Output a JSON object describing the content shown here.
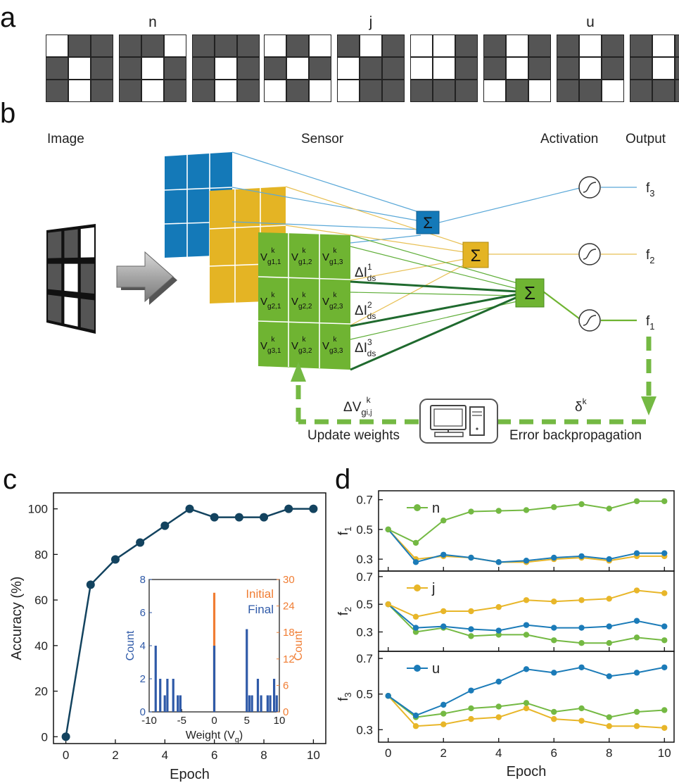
{
  "panel_labels": {
    "a": "a",
    "b": "b",
    "c": "c",
    "d": "d"
  },
  "panel_a": {
    "groups": [
      {
        "letter": "n",
        "patterns": [
          [
            1,
            0,
            0,
            0,
            1,
            0,
            0,
            1,
            0
          ],
          [
            0,
            0,
            1,
            0,
            1,
            0,
            0,
            1,
            0
          ],
          [
            0,
            0,
            0,
            0,
            1,
            0,
            0,
            1,
            0
          ]
        ]
      },
      {
        "letter": "j",
        "patterns": [
          [
            1,
            0,
            1,
            0,
            1,
            0,
            1,
            0,
            1
          ],
          [
            0,
            1,
            0,
            1,
            0,
            0,
            1,
            0,
            0
          ],
          [
            1,
            1,
            0,
            1,
            1,
            0,
            0,
            0,
            0
          ]
        ]
      },
      {
        "letter": "u",
        "patterns": [
          [
            0,
            1,
            0,
            0,
            1,
            0,
            1,
            0,
            1
          ],
          [
            0,
            1,
            0,
            0,
            1,
            0,
            0,
            0,
            1
          ],
          [
            0,
            1,
            0,
            0,
            1,
            0,
            0,
            0,
            0
          ]
        ]
      }
    ]
  },
  "panel_b": {
    "labels": {
      "image": "Image",
      "sensor": "Sensor",
      "activation": "Activation",
      "output": "Output"
    },
    "input_image": [
      1,
      1,
      0,
      1,
      0,
      1,
      1,
      0,
      1
    ],
    "cell_main": "V",
    "cell_sub": "g",
    "cell_sup": "k",
    "cells": [
      "1,1",
      "1,2",
      "1,3",
      "2,1",
      "2,2",
      "2,3",
      "3,1",
      "3,2",
      "3,3"
    ],
    "sum_symbol": "Σ",
    "outputs": [
      {
        "main": "f",
        "sub": "3"
      },
      {
        "main": "f",
        "sub": "2"
      },
      {
        "main": "f",
        "sub": "1"
      }
    ],
    "currents": [
      {
        "main": "ΔI",
        "sub": "ds",
        "sup": "1"
      },
      {
        "main": "ΔI",
        "sub": "ds",
        "sup": "2"
      },
      {
        "main": "ΔI",
        "sub": "ds",
        "sup": "3"
      }
    ],
    "dv": {
      "main": "ΔV",
      "sub": "g",
      "subsub": "i,j",
      "sup": "k"
    },
    "delta": {
      "main": "δ",
      "sup": "k"
    },
    "update_label": "Update weights",
    "backprop_label": "Error backpropagation"
  },
  "panel_c": {
    "chart_data": {
      "type": "line",
      "x": [
        0,
        1,
        2,
        3,
        4,
        5,
        6,
        7,
        8,
        9,
        10
      ],
      "y": [
        0,
        66.7,
        77.8,
        85.2,
        92.6,
        100,
        96.3,
        96.3,
        96.3,
        100,
        100
      ],
      "xlabel": "Epoch",
      "ylabel": "Accuracy (%)",
      "xlim": [
        -0.5,
        10.5
      ],
      "ylim": [
        -3,
        107
      ],
      "xticks": [
        0,
        2,
        4,
        6,
        8,
        10
      ],
      "yticks": [
        0,
        20,
        40,
        60,
        80,
        100
      ],
      "color": "#13435f"
    },
    "inset": {
      "type": "bar",
      "xlabel": "Weight (V",
      "xlabel_sub": "g",
      "xlabel_end": ")",
      "ylabel_left": "Count",
      "ylabel_right": "Count",
      "legend": [
        "Initial",
        "Final"
      ],
      "xticks": [
        -10,
        -5,
        0,
        5,
        10
      ],
      "yticks_left": [
        0,
        2,
        4,
        6,
        8
      ],
      "yticks_right": [
        0,
        6,
        12,
        18,
        24,
        30
      ],
      "xlim": [
        -10,
        10
      ],
      "ylim_left": [
        0,
        8
      ],
      "ylim_right": [
        0,
        30
      ],
      "initial_color": "#f07d33",
      "final_color": "#2f5aa8",
      "initial": [
        {
          "x": 0,
          "count": 27
        }
      ],
      "final": [
        {
          "x": -9,
          "count": 4
        },
        {
          "x": -8.3,
          "count": 2
        },
        {
          "x": -7.6,
          "count": 1
        },
        {
          "x": -7.2,
          "count": 2
        },
        {
          "x": -6.3,
          "count": 2
        },
        {
          "x": -5.6,
          "count": 1
        },
        {
          "x": -5.2,
          "count": 1
        },
        {
          "x": 0,
          "count": 4
        },
        {
          "x": 5,
          "count": 5
        },
        {
          "x": 5.4,
          "count": 1
        },
        {
          "x": 5.8,
          "count": 1
        },
        {
          "x": 6.7,
          "count": 2
        },
        {
          "x": 7.2,
          "count": 1
        },
        {
          "x": 8.2,
          "count": 1
        },
        {
          "x": 8.6,
          "count": 1
        },
        {
          "x": 9.2,
          "count": 2
        },
        {
          "x": 9.6,
          "count": 1
        }
      ]
    }
  },
  "panel_d": {
    "chart_data": [
      {
        "type": "line",
        "ylabel_main": "f",
        "ylabel_sub": "1",
        "legend": "n",
        "legend_color": "#74b943",
        "x": [
          0,
          1,
          2,
          3,
          4,
          5,
          6,
          7,
          8,
          9,
          10
        ],
        "ylim": [
          0.22,
          0.76
        ],
        "yticks": [
          0.3,
          0.5,
          0.7
        ],
        "series": [
          {
            "color": "#74b943",
            "values": [
              0.5,
              0.41,
              0.56,
              0.62,
              0.625,
              0.63,
              0.65,
              0.67,
              0.64,
              0.69,
              0.69
            ]
          },
          {
            "color": "#1b7bb8",
            "values": [
              0.5,
              0.28,
              0.33,
              0.31,
              0.28,
              0.29,
              0.31,
              0.32,
              0.3,
              0.34,
              0.34
            ]
          },
          {
            "color": "#e8b629",
            "values": [
              0.5,
              0.3,
              0.32,
              0.31,
              0.28,
              0.28,
              0.3,
              0.31,
              0.29,
              0.32,
              0.32
            ]
          }
        ]
      },
      {
        "type": "line",
        "ylabel_main": "f",
        "ylabel_sub": "2",
        "legend": "j",
        "legend_color": "#e8b629",
        "x": [
          0,
          1,
          2,
          3,
          4,
          5,
          6,
          7,
          8,
          9,
          10
        ],
        "ylim": [
          0.16,
          0.74
        ],
        "yticks": [
          0.3,
          0.5,
          0.7
        ],
        "series": [
          {
            "color": "#e8b629",
            "values": [
              0.5,
              0.41,
              0.45,
              0.45,
              0.48,
              0.53,
              0.52,
              0.53,
              0.54,
              0.6,
              0.58
            ]
          },
          {
            "color": "#1b7bb8",
            "values": [
              0.5,
              0.33,
              0.34,
              0.32,
              0.31,
              0.35,
              0.33,
              0.33,
              0.34,
              0.38,
              0.34
            ]
          },
          {
            "color": "#74b943",
            "values": [
              0.5,
              0.3,
              0.33,
              0.27,
              0.28,
              0.28,
              0.24,
              0.22,
              0.22,
              0.26,
              0.24
            ]
          }
        ]
      },
      {
        "type": "line",
        "ylabel_main": "f",
        "ylabel_sub": "3",
        "legend": "u",
        "legend_color": "#1b7bb8",
        "x": [
          0,
          1,
          2,
          3,
          4,
          5,
          6,
          7,
          8,
          9,
          10
        ],
        "ylim": [
          0.23,
          0.74
        ],
        "yticks": [
          0.3,
          0.5,
          0.7
        ],
        "xlabel": "Epoch",
        "xticks": [
          0,
          2,
          4,
          6,
          8,
          10
        ],
        "series": [
          {
            "color": "#1b7bb8",
            "values": [
              0.49,
              0.38,
              0.44,
              0.52,
              0.57,
              0.64,
              0.62,
              0.65,
              0.6,
              0.62,
              0.65
            ]
          },
          {
            "color": "#74b943",
            "values": [
              0.49,
              0.37,
              0.39,
              0.42,
              0.43,
              0.45,
              0.4,
              0.42,
              0.37,
              0.4,
              0.41
            ]
          },
          {
            "color": "#e8b629",
            "values": [
              0.49,
              0.32,
              0.33,
              0.36,
              0.37,
              0.42,
              0.36,
              0.35,
              0.32,
              0.32,
              0.31
            ]
          }
        ]
      }
    ]
  }
}
